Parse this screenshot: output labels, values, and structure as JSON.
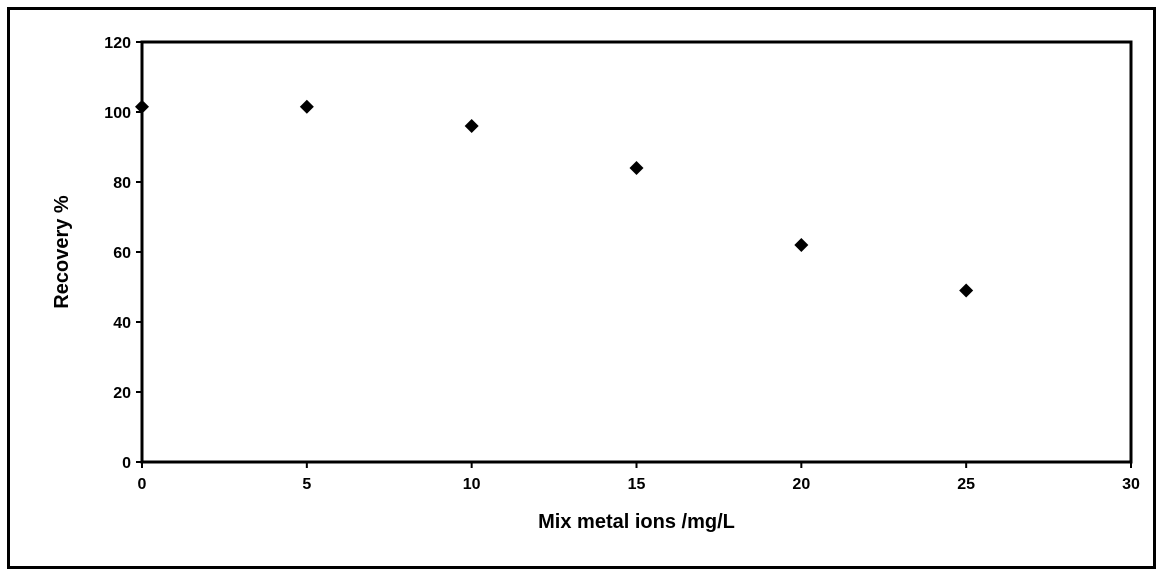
{
  "chart_data": {
    "type": "scatter",
    "title": "",
    "xlabel": "Mix metal ions /mg/L",
    "ylabel": "Recovery %",
    "xlim": [
      0,
      30
    ],
    "ylim": [
      0,
      120
    ],
    "xticks": [
      0,
      5,
      10,
      15,
      20,
      25,
      30
    ],
    "yticks": [
      0,
      20,
      40,
      60,
      80,
      100,
      120
    ],
    "grid": false,
    "legend": "none",
    "marker": "diamond",
    "marker_color": "#000000",
    "series": [
      {
        "x": [
          0,
          5,
          10,
          15,
          20,
          25
        ],
        "y": [
          101.5,
          101.5,
          96,
          84,
          62,
          49
        ]
      }
    ]
  }
}
